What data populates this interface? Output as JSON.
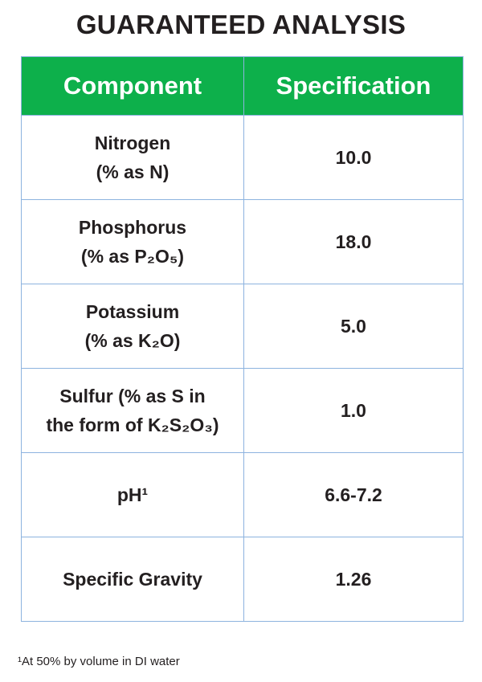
{
  "header": {
    "title": "GUARANTEED ANALYSIS"
  },
  "table": {
    "columns": [
      "Component",
      "Specification"
    ],
    "rows": [
      [
        [
          "Nitrogen",
          "(% as N)"
        ],
        "10.0"
      ],
      [
        [
          "Phosphorus",
          "(% as P₂O₅)"
        ],
        "18.0"
      ],
      [
        [
          "Potassium",
          "(% as K₂O)"
        ],
        "5.0"
      ],
      [
        [
          "Sulfur (% as S in",
          "the form of K₂S₂O₃)"
        ],
        "1.0"
      ],
      [
        [
          "pH¹"
        ],
        "6.6-7.2"
      ],
      [
        [
          "Specific Gravity"
        ],
        "1.26"
      ]
    ]
  },
  "footnote": "¹At 50% by volume in DI water"
}
